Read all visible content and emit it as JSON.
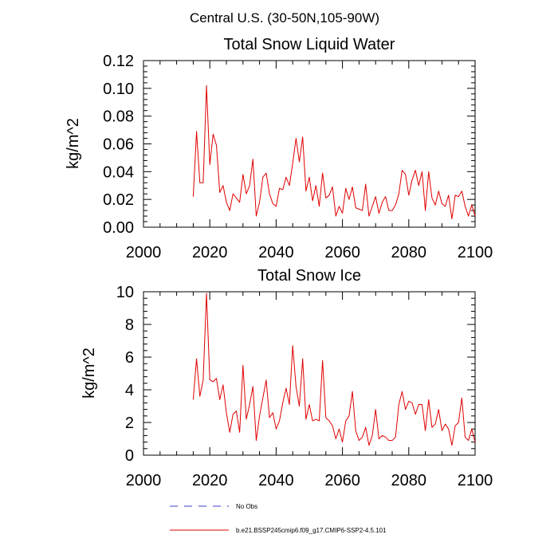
{
  "figure_title": "Central U.S. (30-50N,105-90W)",
  "legend": [
    {
      "label": "No Obs",
      "color": "#3d3dcc",
      "style": "dashed"
    },
    {
      "label": "b.e21.BSSP245cmip6.f09_g17.CMIP6-SSP2-4.5.101",
      "color": "#e00000",
      "style": "solid"
    }
  ],
  "chart_data": [
    {
      "type": "line",
      "title": "Total Snow Liquid Water",
      "xlabel": "",
      "ylabel": "kg/m^2",
      "xlim": [
        2000,
        2100
      ],
      "ylim": [
        0,
        0.12
      ],
      "xticks": [
        2000,
        2020,
        2040,
        2060,
        2080,
        2100
      ],
      "xtick_labels": [
        "2000",
        "2020",
        "2040",
        "2060",
        "2080",
        "2100"
      ],
      "yticks": [
        0,
        0.02,
        0.04,
        0.06,
        0.08,
        0.1,
        0.12
      ],
      "ytick_labels": [
        "0.00",
        "0.02",
        "0.04",
        "0.06",
        "0.08",
        "0.10",
        "0.12"
      ],
      "grid": false,
      "series": [
        {
          "name": "b.e21.BSSP245cmip6.f09_g17.CMIP6-SSP2-4.5.101",
          "color": "#e00000",
          "x_start": 2015,
          "x_step": 1,
          "values": [
            0.022,
            0.069,
            0.032,
            0.032,
            0.102,
            0.045,
            0.067,
            0.059,
            0.025,
            0.03,
            0.018,
            0.012,
            0.024,
            0.021,
            0.018,
            0.038,
            0.024,
            0.03,
            0.049,
            0.008,
            0.018,
            0.036,
            0.039,
            0.024,
            0.017,
            0.015,
            0.028,
            0.027,
            0.036,
            0.03,
            0.046,
            0.064,
            0.047,
            0.065,
            0.026,
            0.036,
            0.019,
            0.03,
            0.015,
            0.039,
            0.021,
            0.023,
            0.029,
            0.008,
            0.015,
            0.01,
            0.028,
            0.02,
            0.029,
            0.014,
            0.013,
            0.012,
            0.031,
            0.008,
            0.015,
            0.022,
            0.01,
            0.018,
            0.022,
            0.012,
            0.012,
            0.016,
            0.024,
            0.041,
            0.038,
            0.023,
            0.034,
            0.041,
            0.03,
            0.04,
            0.012,
            0.04,
            0.021,
            0.016,
            0.026,
            0.017,
            0.015,
            0.023,
            0.006,
            0.023,
            0.022,
            0.026,
            0.015,
            0.008,
            0.016,
            0.008
          ]
        }
      ]
    },
    {
      "type": "line",
      "title": "Total Snow Ice",
      "xlabel": "",
      "ylabel": "kg/m^2",
      "xlim": [
        2000,
        2100
      ],
      "ylim": [
        0,
        10
      ],
      "xticks": [
        2000,
        2020,
        2040,
        2060,
        2080,
        2100
      ],
      "xtick_labels": [
        "2000",
        "2020",
        "2040",
        "2060",
        "2080",
        "2100"
      ],
      "yticks": [
        0,
        2,
        4,
        6,
        8,
        10
      ],
      "ytick_labels": [
        "0",
        "2",
        "4",
        "6",
        "8",
        "10"
      ],
      "grid": false,
      "series": [
        {
          "name": "b.e21.BSSP245cmip6.f09_g17.CMIP6-SSP2-4.5.101",
          "color": "#e00000",
          "x_start": 2015,
          "x_step": 1,
          "values": [
            3.4,
            5.9,
            3.6,
            4.6,
            9.9,
            4.6,
            4.5,
            4.7,
            3.4,
            4.3,
            2.6,
            1.4,
            2.5,
            2.7,
            1.4,
            5.5,
            2.2,
            3.1,
            4.2,
            0.9,
            2.4,
            3.5,
            4.6,
            2.3,
            2.6,
            1.6,
            2.1,
            3.2,
            4.1,
            3.1,
            6.7,
            4.2,
            3.0,
            5.9,
            2.2,
            3.1,
            2.1,
            2.2,
            2.1,
            5.8,
            2.3,
            2.1,
            1.8,
            1.0,
            1.6,
            0.8,
            2.1,
            2.4,
            3.9,
            1.5,
            0.9,
            1.1,
            1.7,
            0.6,
            1.2,
            2.8,
            1.0,
            1.2,
            1.1,
            0.9,
            0.9,
            1.1,
            3.1,
            3.9,
            2.8,
            3.3,
            3.2,
            2.5,
            3.1,
            3.1,
            1.5,
            3.4,
            1.7,
            1.9,
            2.8,
            1.5,
            1.9,
            1.6,
            0.6,
            1.8,
            2.0,
            3.5,
            1.1,
            0.9,
            1.6,
            0.8
          ]
        }
      ]
    }
  ]
}
